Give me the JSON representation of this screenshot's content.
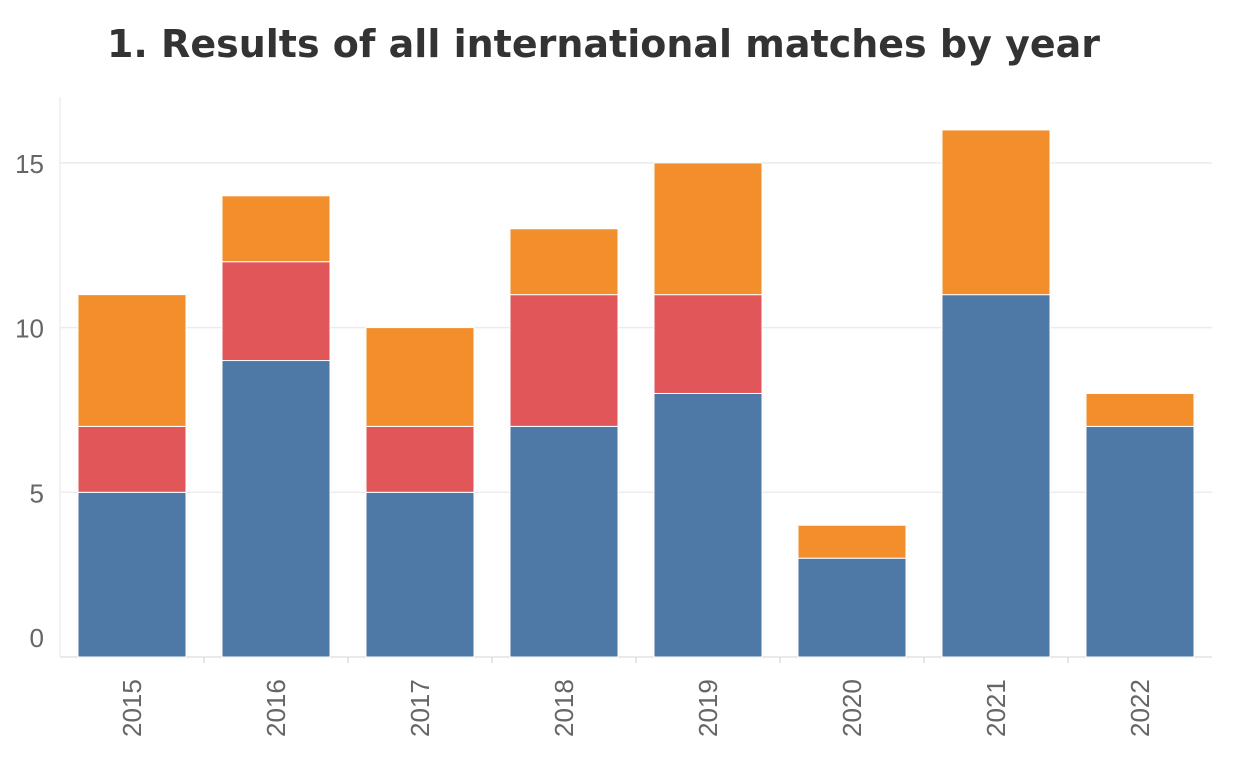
{
  "chart_data": {
    "type": "bar",
    "stacked": true,
    "title": "1. Results of all international matches by year",
    "xlabel": "",
    "ylabel": "",
    "categories": [
      "2015",
      "2016",
      "2017",
      "2018",
      "2019",
      "2020",
      "2021",
      "2022"
    ],
    "series": [
      {
        "color": "#4e79a7",
        "values": [
          5,
          9,
          5,
          7,
          8,
          3,
          11,
          7
        ]
      },
      {
        "color": "#e15759",
        "values": [
          2,
          3,
          2,
          4,
          3,
          0,
          0,
          0
        ]
      },
      {
        "color": "#f28e2b",
        "values": [
          4,
          2,
          3,
          2,
          4,
          1,
          5,
          1
        ]
      }
    ],
    "yticks": [
      0,
      5,
      10,
      15
    ],
    "ylim": [
      0,
      17
    ],
    "grid": true,
    "legend": "none"
  }
}
